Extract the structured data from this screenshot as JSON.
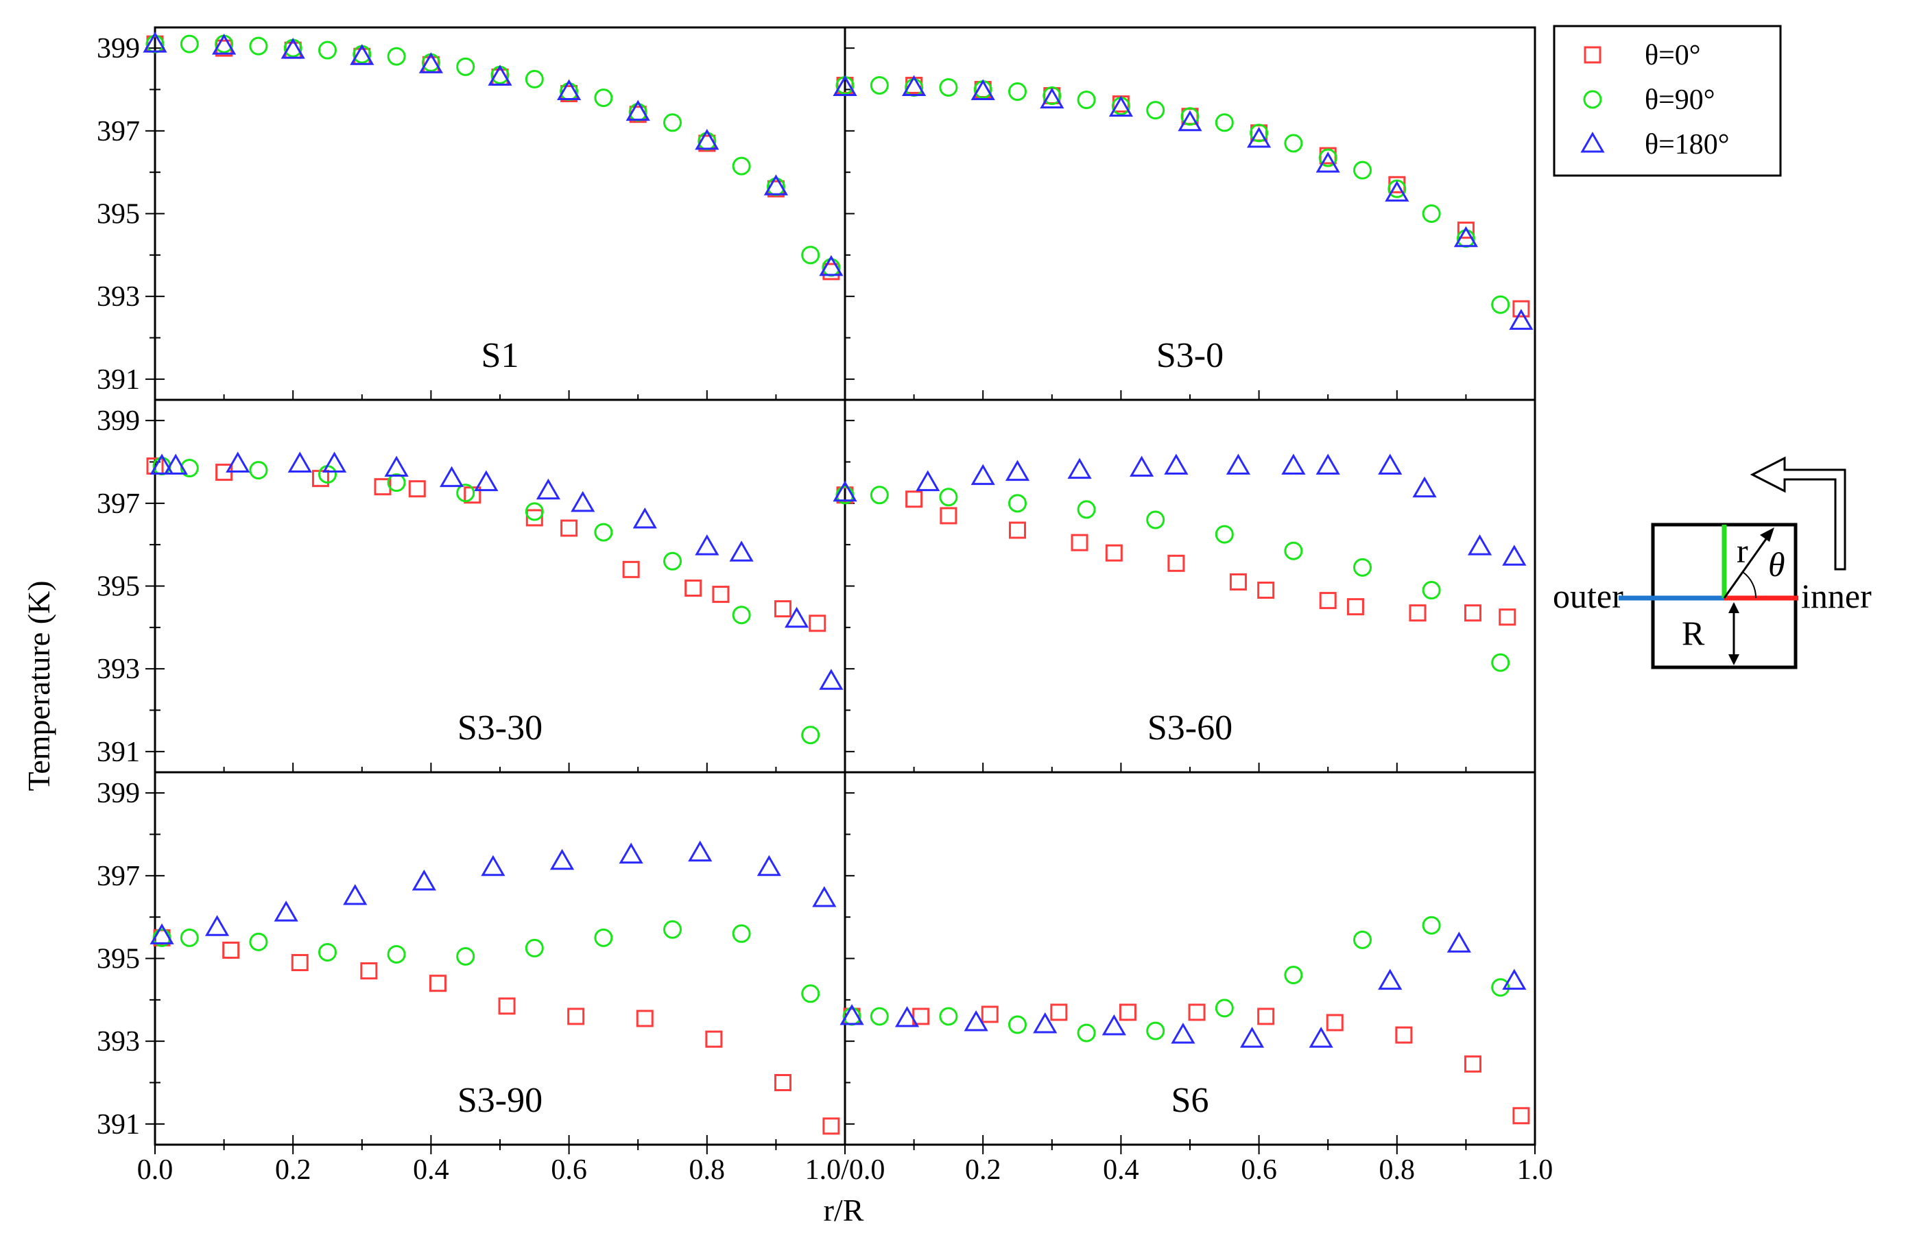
{
  "figure": {
    "ylabel": "Temperature (K)",
    "xlabel": "r/R",
    "yticks": [
      "399",
      "397",
      "395",
      "393",
      "391"
    ],
    "xticks_left": [
      "0.0",
      "0.2",
      "0.4",
      "0.6",
      "0.8",
      "1.0/0.0"
    ],
    "xticks_right": [
      "0.2",
      "0.4",
      "0.6",
      "0.8",
      "1.0"
    ]
  },
  "legend": {
    "items": [
      {
        "label": "θ=0°",
        "marker": "square",
        "color": "#ff3b3b"
      },
      {
        "label": "θ=90°",
        "marker": "circle",
        "color": "#19e619"
      },
      {
        "label": "θ=180°",
        "marker": "triangle",
        "color": "#2a2aff"
      }
    ]
  },
  "inset": {
    "outer_label": "outer",
    "inner_label": "inner",
    "r_label": "r",
    "theta_label": "θ",
    "R_label": "R",
    "arrow_icon": "flow-arrow-icon"
  },
  "colors": {
    "theta0": "#ff3b3b",
    "theta90": "#19e619",
    "theta180": "#2a2aff",
    "inset_blue": "#1f77d0",
    "inset_red": "#ff2020",
    "inset_green": "#22dd22"
  },
  "chart_data": [
    {
      "type": "scatter",
      "title": "S1",
      "xlim": [
        0,
        1
      ],
      "ylim": [
        390.5,
        399.5
      ],
      "series": [
        {
          "name": "θ=0°",
          "x": [
            0.0,
            0.1,
            0.2,
            0.3,
            0.4,
            0.5,
            0.6,
            0.7,
            0.8,
            0.9,
            0.98
          ],
          "y": [
            399.1,
            399.0,
            398.95,
            398.8,
            398.6,
            398.3,
            397.9,
            397.4,
            396.7,
            395.6,
            393.6
          ]
        },
        {
          "name": "θ=90°",
          "x": [
            0.0,
            0.05,
            0.1,
            0.15,
            0.2,
            0.25,
            0.3,
            0.35,
            0.4,
            0.45,
            0.5,
            0.55,
            0.6,
            0.65,
            0.7,
            0.75,
            0.8,
            0.85,
            0.9,
            0.95,
            0.98
          ],
          "y": [
            399.1,
            399.1,
            399.1,
            399.05,
            399.0,
            398.95,
            398.85,
            398.8,
            398.65,
            398.55,
            398.35,
            398.25,
            397.95,
            397.8,
            397.45,
            397.2,
            396.75,
            396.15,
            395.65,
            394.0,
            393.7
          ]
        },
        {
          "name": "θ=180°",
          "x": [
            0.0,
            0.1,
            0.2,
            0.3,
            0.4,
            0.5,
            0.6,
            0.7,
            0.8,
            0.9,
            0.98
          ],
          "y": [
            399.1,
            399.05,
            398.95,
            398.8,
            398.6,
            398.3,
            397.95,
            397.45,
            396.75,
            395.65,
            393.7
          ]
        }
      ]
    },
    {
      "type": "scatter",
      "title": "S3-0",
      "xlim": [
        0,
        1
      ],
      "ylim": [
        390.5,
        399.5
      ],
      "series": [
        {
          "name": "θ=0°",
          "x": [
            0.0,
            0.1,
            0.2,
            0.3,
            0.4,
            0.5,
            0.6,
            0.7,
            0.8,
            0.9,
            0.98
          ],
          "y": [
            398.1,
            398.1,
            398.0,
            397.85,
            397.65,
            397.35,
            396.95,
            396.4,
            395.7,
            394.6,
            392.7
          ]
        },
        {
          "name": "θ=90°",
          "x": [
            0.0,
            0.05,
            0.1,
            0.15,
            0.2,
            0.25,
            0.3,
            0.35,
            0.4,
            0.45,
            0.5,
            0.55,
            0.6,
            0.65,
            0.7,
            0.75,
            0.8,
            0.85,
            0.9,
            0.95
          ],
          "y": [
            398.1,
            398.1,
            398.05,
            398.05,
            398.0,
            397.95,
            397.85,
            397.75,
            397.6,
            397.5,
            397.35,
            397.2,
            396.95,
            396.7,
            396.35,
            396.05,
            395.6,
            395.0,
            394.4,
            392.8
          ]
        },
        {
          "name": "θ=180°",
          "x": [
            0.0,
            0.1,
            0.2,
            0.3,
            0.4,
            0.5,
            0.6,
            0.7,
            0.8,
            0.9,
            0.98
          ],
          "y": [
            398.05,
            398.05,
            397.95,
            397.75,
            397.55,
            397.2,
            396.8,
            396.2,
            395.5,
            394.4,
            392.4
          ]
        }
      ]
    },
    {
      "type": "scatter",
      "title": "S3-30",
      "xlim": [
        0,
        1
      ],
      "ylim": [
        390.5,
        399.5
      ],
      "series": [
        {
          "name": "θ=0°",
          "x": [
            0.0,
            0.1,
            0.24,
            0.33,
            0.38,
            0.46,
            0.55,
            0.6,
            0.69,
            0.78,
            0.82,
            0.91,
            0.96
          ],
          "y": [
            397.9,
            397.75,
            397.6,
            397.4,
            397.35,
            397.2,
            396.65,
            396.4,
            395.4,
            394.95,
            394.8,
            394.45,
            394.1
          ]
        },
        {
          "name": "θ=90°",
          "x": [
            0.01,
            0.05,
            0.15,
            0.25,
            0.35,
            0.45,
            0.55,
            0.65,
            0.75,
            0.85,
            0.95
          ],
          "y": [
            397.9,
            397.85,
            397.8,
            397.7,
            397.5,
            397.25,
            396.8,
            396.3,
            395.6,
            394.3,
            391.4
          ]
        },
        {
          "name": "θ=180°",
          "x": [
            0.01,
            0.03,
            0.12,
            0.21,
            0.26,
            0.35,
            0.43,
            0.48,
            0.57,
            0.62,
            0.71,
            0.8,
            0.85,
            0.93,
            0.98
          ],
          "y": [
            397.9,
            397.9,
            397.95,
            397.95,
            397.95,
            397.85,
            397.6,
            397.5,
            397.3,
            397.0,
            396.6,
            395.95,
            395.8,
            394.2,
            392.7
          ]
        }
      ]
    },
    {
      "type": "scatter",
      "title": "S3-60",
      "xlim": [
        0,
        1
      ],
      "ylim": [
        390.5,
        399.5
      ],
      "series": [
        {
          "name": "θ=0°",
          "x": [
            0.0,
            0.1,
            0.15,
            0.25,
            0.34,
            0.39,
            0.48,
            0.57,
            0.61,
            0.7,
            0.74,
            0.83,
            0.91,
            0.96
          ],
          "y": [
            397.2,
            397.1,
            396.7,
            396.35,
            396.05,
            395.8,
            395.55,
            395.1,
            394.9,
            394.65,
            394.5,
            394.35,
            394.35,
            394.25
          ]
        },
        {
          "name": "θ=90°",
          "x": [
            0.0,
            0.05,
            0.15,
            0.25,
            0.35,
            0.45,
            0.55,
            0.65,
            0.75,
            0.85,
            0.95
          ],
          "y": [
            397.2,
            397.2,
            397.15,
            397.0,
            396.85,
            396.6,
            396.25,
            395.85,
            395.45,
            394.9,
            393.15
          ]
        },
        {
          "name": "θ=180°",
          "x": [
            0.0,
            0.12,
            0.2,
            0.25,
            0.34,
            0.43,
            0.48,
            0.57,
            0.65,
            0.7,
            0.79,
            0.84,
            0.92,
            0.97
          ],
          "y": [
            397.25,
            397.5,
            397.65,
            397.75,
            397.8,
            397.85,
            397.9,
            397.9,
            397.9,
            397.9,
            397.9,
            397.35,
            395.95,
            395.7
          ]
        }
      ]
    },
    {
      "type": "scatter",
      "title": "S3-90",
      "xlim": [
        0,
        1
      ],
      "ylim": [
        390.5,
        399.5
      ],
      "series": [
        {
          "name": "θ=0°",
          "x": [
            0.01,
            0.11,
            0.21,
            0.31,
            0.41,
            0.51,
            0.61,
            0.71,
            0.81,
            0.91,
            0.98
          ],
          "y": [
            395.5,
            395.2,
            394.9,
            394.7,
            394.4,
            393.85,
            393.6,
            393.55,
            393.05,
            392.0,
            390.95
          ]
        },
        {
          "name": "θ=90°",
          "x": [
            0.01,
            0.05,
            0.15,
            0.25,
            0.35,
            0.45,
            0.55,
            0.65,
            0.75,
            0.85,
            0.95
          ],
          "y": [
            395.5,
            395.5,
            395.4,
            395.15,
            395.1,
            395.05,
            395.25,
            395.5,
            395.7,
            395.6,
            394.15
          ]
        },
        {
          "name": "θ=180°",
          "x": [
            0.01,
            0.09,
            0.19,
            0.29,
            0.39,
            0.49,
            0.59,
            0.69,
            0.79,
            0.89,
            0.97
          ],
          "y": [
            395.55,
            395.75,
            396.1,
            396.5,
            396.85,
            397.2,
            397.35,
            397.5,
            397.55,
            397.2,
            396.45
          ]
        }
      ]
    },
    {
      "type": "scatter",
      "title": "S6",
      "xlim": [
        0,
        1
      ],
      "ylim": [
        390.5,
        399.5
      ],
      "series": [
        {
          "name": "θ=0°",
          "x": [
            0.01,
            0.11,
            0.21,
            0.31,
            0.41,
            0.51,
            0.61,
            0.71,
            0.81,
            0.91,
            0.98
          ],
          "y": [
            393.6,
            393.6,
            393.65,
            393.7,
            393.7,
            393.7,
            393.6,
            393.45,
            393.15,
            392.45,
            391.2
          ]
        },
        {
          "name": "θ=90°",
          "x": [
            0.01,
            0.05,
            0.15,
            0.25,
            0.35,
            0.45,
            0.55,
            0.65,
            0.75,
            0.85,
            0.95
          ],
          "y": [
            393.6,
            393.6,
            393.6,
            393.4,
            393.2,
            393.25,
            393.8,
            394.6,
            395.45,
            395.8,
            394.3
          ]
        },
        {
          "name": "θ=180°",
          "x": [
            0.01,
            0.09,
            0.19,
            0.29,
            0.39,
            0.49,
            0.59,
            0.69,
            0.79,
            0.89,
            0.97
          ],
          "y": [
            393.6,
            393.55,
            393.45,
            393.4,
            393.35,
            393.15,
            393.05,
            393.05,
            394.45,
            395.35,
            394.45
          ]
        }
      ]
    }
  ]
}
